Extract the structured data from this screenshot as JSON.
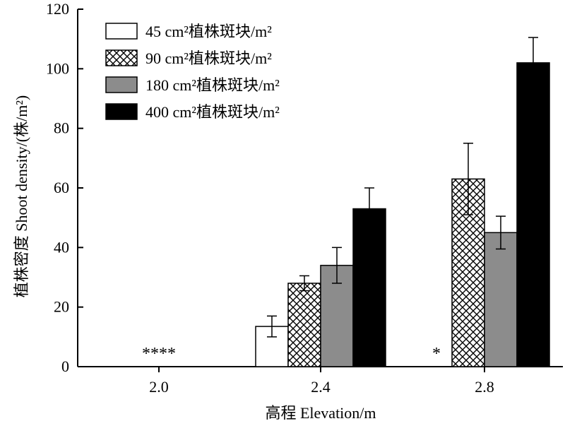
{
  "chart_data": {
    "type": "bar",
    "xlabel": "高程 Elevation/m",
    "ylabel": "植株密度 Shoot density/(株/m²)",
    "categories": [
      "2.0",
      "2.4",
      "2.8"
    ],
    "ylim": [
      0,
      120
    ],
    "yticks": [
      0,
      20,
      40,
      60,
      80,
      100,
      120
    ],
    "legend_position": "top-left",
    "series": [
      {
        "name": "45 cm²植株斑块/m²",
        "pattern": "white",
        "color": "#ffffff",
        "values": [
          0,
          13.5,
          0
        ],
        "errors": [
          0,
          3.5,
          0
        ]
      },
      {
        "name": "90 cm²植株斑块/m²",
        "pattern": "crosshatch",
        "color": "#ffffff",
        "values": [
          0,
          28,
          63
        ],
        "errors": [
          0,
          2.5,
          12
        ]
      },
      {
        "name": "180 cm²植株斑块/m²",
        "pattern": "gray",
        "color": "#8c8c8c",
        "values": [
          0,
          34,
          45
        ],
        "errors": [
          0,
          6,
          5.5
        ]
      },
      {
        "name": "400 cm²植株斑块/m²",
        "pattern": "black",
        "color": "#000000",
        "values": [
          0,
          53,
          102
        ],
        "errors": [
          0,
          7,
          8.5
        ]
      }
    ],
    "annotations": [
      {
        "text": "****",
        "category": "2.0"
      },
      {
        "text": "*",
        "category": "2.8"
      }
    ]
  }
}
